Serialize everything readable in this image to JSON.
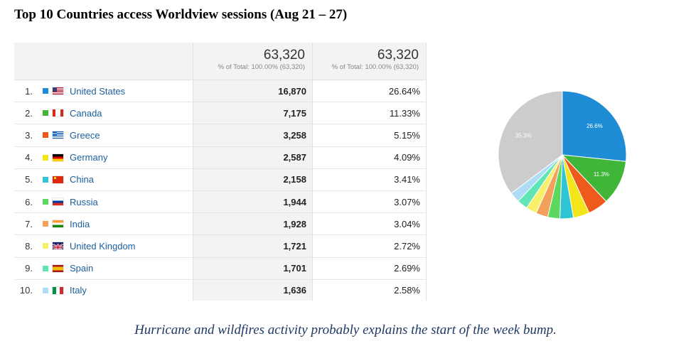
{
  "title": "Top 10 Countries access Worldview sessions (Aug 21 – 27)",
  "table": {
    "totals": [
      {
        "value": "63,320",
        "pct": "% of Total: 100.00% (63,320)"
      },
      {
        "value": "63,320",
        "pct": "% of Total: 100.00% (63,320)"
      }
    ],
    "rows": [
      {
        "rank": "1.",
        "country": "United States",
        "sessions": "16,870",
        "percent": "26.64%",
        "color": "#1f8dd6",
        "flag": "us"
      },
      {
        "rank": "2.",
        "country": "Canada",
        "sessions": "7,175",
        "percent": "11.33%",
        "color": "#40b639",
        "flag": "ca"
      },
      {
        "rank": "3.",
        "country": "Greece",
        "sessions": "3,258",
        "percent": "5.15%",
        "color": "#ed5a1c",
        "flag": "gr"
      },
      {
        "rank": "4.",
        "country": "Germany",
        "sessions": "2,587",
        "percent": "4.09%",
        "color": "#f2e61a",
        "flag": "de"
      },
      {
        "rank": "5.",
        "country": "China",
        "sessions": "2,158",
        "percent": "3.41%",
        "color": "#2fc4d4",
        "flag": "cn"
      },
      {
        "rank": "6.",
        "country": "Russia",
        "sessions": "1,944",
        "percent": "3.07%",
        "color": "#5dd85f",
        "flag": "ru"
      },
      {
        "rank": "7.",
        "country": "India",
        "sessions": "1,928",
        "percent": "3.04%",
        "color": "#f2a05a",
        "flag": "in"
      },
      {
        "rank": "8.",
        "country": "United Kingdom",
        "sessions": "1,721",
        "percent": "2.72%",
        "color": "#f7f06a",
        "flag": "gb"
      },
      {
        "rank": "9.",
        "country": "Spain",
        "sessions": "1,701",
        "percent": "2.69%",
        "color": "#5fe6b4",
        "flag": "es"
      },
      {
        "rank": "10.",
        "country": "Italy",
        "sessions": "1,636",
        "percent": "2.58%",
        "color": "#aedcf5",
        "flag": "it"
      }
    ]
  },
  "chart_data": {
    "type": "pie",
    "categories": [
      "United States",
      "Canada",
      "Greece",
      "Germany",
      "China",
      "Russia",
      "India",
      "United Kingdom",
      "Spain",
      "Italy",
      "(other)"
    ],
    "values": [
      26.64,
      11.33,
      5.15,
      4.09,
      3.41,
      3.07,
      3.04,
      2.72,
      2.69,
      2.58,
      35.28
    ],
    "colors": [
      "#1f8dd6",
      "#40b639",
      "#ed5a1c",
      "#f2e61a",
      "#2fc4d4",
      "#5dd85f",
      "#f2a05a",
      "#f7f06a",
      "#5fe6b4",
      "#aedcf5",
      "#cccccc"
    ],
    "labels": [
      "26.6%",
      "11.3%",
      "",
      "",
      "",
      "",
      "",
      "",
      "",
      "",
      "35.3%"
    ]
  },
  "caption": "Hurricane and wildfires activity probably explains the start of the week bump."
}
